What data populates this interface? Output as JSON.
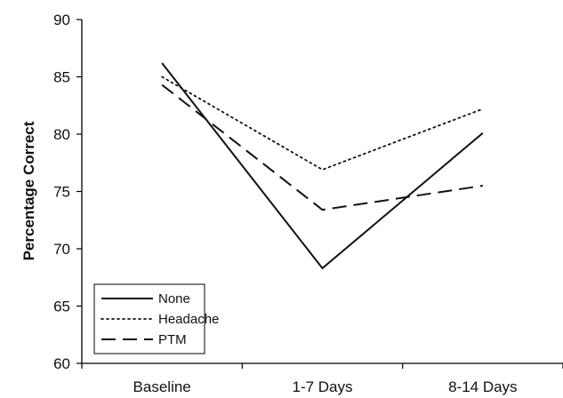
{
  "chart_data": {
    "type": "line",
    "title": "",
    "xlabel": "",
    "ylabel": "Percentage Correct",
    "categories": [
      "Baseline",
      "1-7 Days",
      "8-14 Days"
    ],
    "ylim": [
      60,
      90
    ],
    "yticks": [
      60,
      65,
      70,
      75,
      80,
      85,
      90
    ],
    "grid": false,
    "legend": "bottom-left",
    "series": [
      {
        "name": "None",
        "values": [
          86.2,
          68.3,
          80.1
        ],
        "dash": "solid",
        "color": "#111111"
      },
      {
        "name": "Headache",
        "values": [
          85.0,
          76.9,
          82.2
        ],
        "dash": "dotted",
        "color": "#111111"
      },
      {
        "name": "PTM",
        "values": [
          84.3,
          73.4,
          75.5
        ],
        "dash": "dashed",
        "color": "#111111"
      }
    ]
  }
}
